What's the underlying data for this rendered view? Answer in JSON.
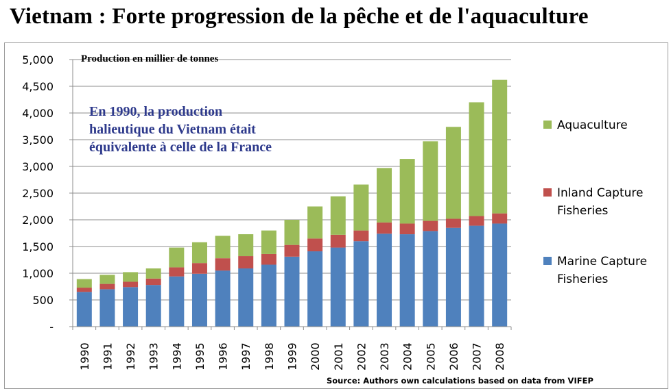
{
  "title": "Vietnam : Forte progression de la pêche et de l'aquaculture",
  "source": "Source: Authors own calculations based on data from VIFEP",
  "colors": {
    "marine": "#4f81bd",
    "inland": "#c0504d",
    "aquaculture": "#9bbb59",
    "annotation": "#2e3a8c"
  },
  "chart_data": {
    "type": "bar",
    "stacked": true,
    "title": "Vietnam : Forte progression de la pêche et de l'aquaculture",
    "ylabel": "Production en millier de tonnes",
    "xlabel": "",
    "ylim": [
      0,
      5000
    ],
    "yticks": [
      0,
      500,
      1000,
      1500,
      2000,
      2500,
      3000,
      3500,
      4000,
      4500,
      5000
    ],
    "ytick_labels": [
      "-",
      "500",
      "1,000",
      "1,500",
      "2,000",
      "2,500",
      "3,000",
      "3,500",
      "4,000",
      "4,500",
      "5,000"
    ],
    "grid": true,
    "legend_position": "right",
    "categories": [
      "1990",
      "1991",
      "1992",
      "1993",
      "1994",
      "1995",
      "1996",
      "1997",
      "1998",
      "1999",
      "2000",
      "2001",
      "2002",
      "2003",
      "2004",
      "2005",
      "2006",
      "2007",
      "2008"
    ],
    "series": [
      {
        "name": "Marine Capture Fisheries",
        "values": [
          650,
          700,
          740,
          780,
          940,
          990,
          1050,
          1090,
          1160,
          1310,
          1410,
          1480,
          1600,
          1740,
          1730,
          1790,
          1850,
          1890,
          1930
        ]
      },
      {
        "name": "Inland Capture Fisheries",
        "values": [
          80,
          100,
          100,
          120,
          170,
          200,
          230,
          230,
          200,
          220,
          240,
          240,
          200,
          210,
          200,
          190,
          170,
          180,
          190
        ]
      },
      {
        "name": "Aquaculture",
        "values": [
          160,
          170,
          180,
          190,
          370,
          390,
          420,
          410,
          440,
          470,
          600,
          720,
          860,
          1020,
          1210,
          1490,
          1720,
          2130,
          2500
        ]
      }
    ],
    "legend": [
      "Aquaculture",
      "Inland Capture Fisheries",
      "Marine Capture Fisheries"
    ],
    "annotation": "En 1990, la production halieutique du Vietnam était équivalente à celle de la France"
  }
}
